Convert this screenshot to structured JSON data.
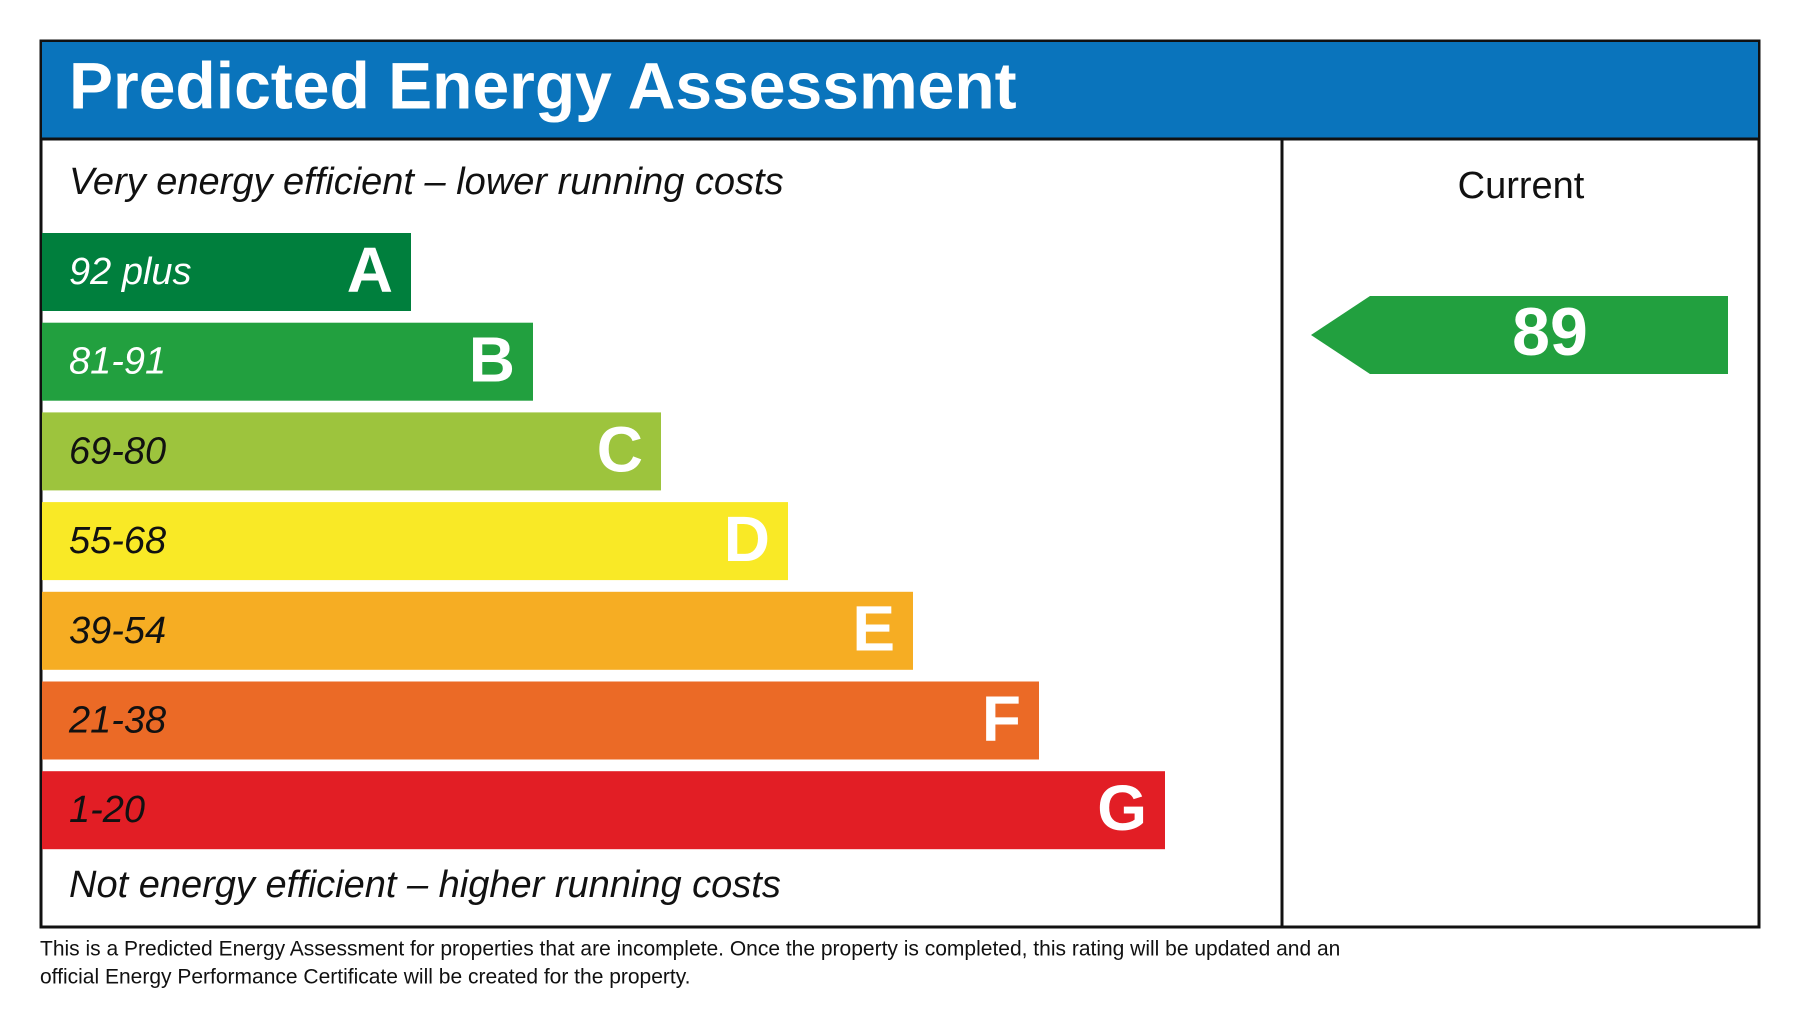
{
  "header": {
    "title": "Predicted Energy Assessment"
  },
  "scale": {
    "top_label": "Very energy efficient – lower running costs",
    "bottom_label": "Not energy efficient – higher running costs",
    "bands": [
      {
        "range": "92 plus",
        "letter": "A",
        "color": "#007f3d",
        "text_color": "#ffffff"
      },
      {
        "range": "81-91",
        "letter": "B",
        "color": "#22a03f",
        "text_color": "#ffffff"
      },
      {
        "range": "69-80",
        "letter": "C",
        "color": "#9dc43d",
        "text_color": "#111111"
      },
      {
        "range": "55-68",
        "letter": "D",
        "color": "#f9e926",
        "text_color": "#111111"
      },
      {
        "range": "39-54",
        "letter": "E",
        "color": "#f6ad23",
        "text_color": "#111111"
      },
      {
        "range": "21-38",
        "letter": "F",
        "color": "#eb6a26",
        "text_color": "#111111"
      },
      {
        "range": "1-20",
        "letter": "G",
        "color": "#e21e25",
        "text_color": "#111111"
      }
    ]
  },
  "current": {
    "label": "Current",
    "value": 89,
    "color": "#22a03f"
  },
  "footer": {
    "lines": [
      "This is a Predicted Energy Assessment for properties that are incomplete. Once the property is completed, this rating will be updated and an",
      "official Energy Performance Certificate will be created for the property."
    ]
  }
}
